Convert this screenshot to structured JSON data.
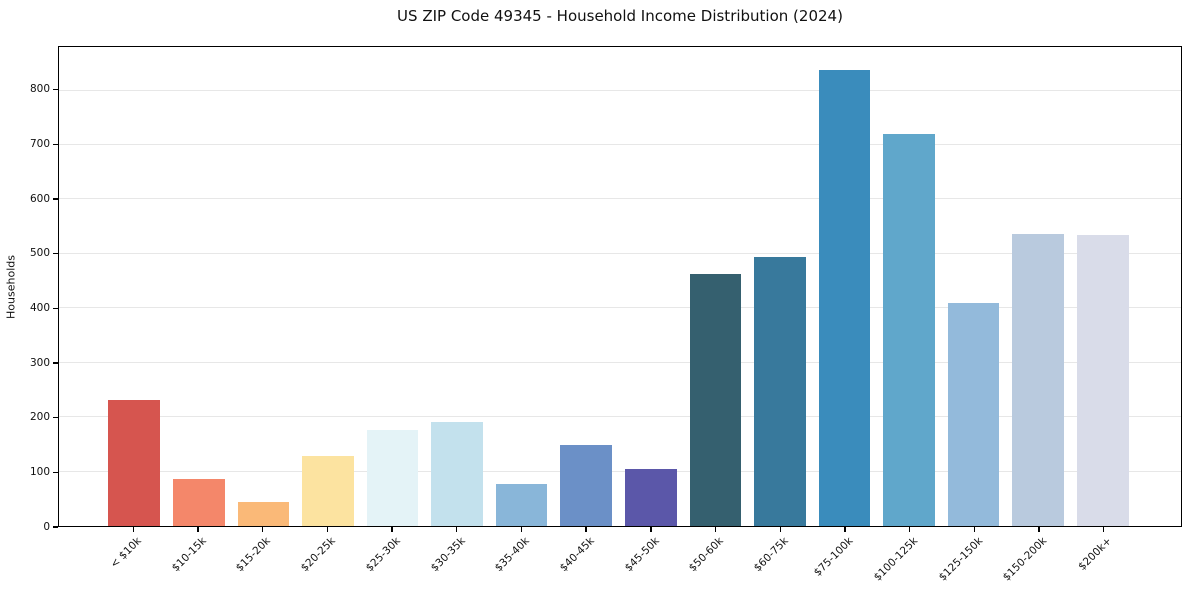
{
  "figure": {
    "background": "#ffffff",
    "text_color": "#111111",
    "spine_color": "#000000"
  },
  "chart_data": {
    "type": "bar",
    "title": "US ZIP Code 49345 - Household Income Distribution (2024)",
    "xlabel": "",
    "ylabel": "Households",
    "categories": [
      "< $10k",
      "$10-15k",
      "$15-20k",
      "$20-25k",
      "$25-30k",
      "$30-35k",
      "$35-40k",
      "$40-45k",
      "$45-50k",
      "$50-60k",
      "$60-75k",
      "$75-100k",
      "$100-125k",
      "$125-150k",
      "$150-200k",
      "$200k+"
    ],
    "values": [
      232,
      87,
      44,
      128,
      176,
      192,
      78,
      148,
      104,
      463,
      494,
      837,
      721,
      410,
      536,
      534
    ],
    "bar_colors": [
      "#d6554f",
      "#f4876a",
      "#fab978",
      "#fce3a0",
      "#e4f3f7",
      "#c3e1ed",
      "#89b6d9",
      "#6b90c7",
      "#5b57a9",
      "#35606f",
      "#38799c",
      "#3a8cbc",
      "#60a7cb",
      "#93badb",
      "#b9cade",
      "#d9dce9"
    ],
    "yticks": [
      0,
      100,
      200,
      300,
      400,
      500,
      600,
      700,
      800
    ],
    "ylim": [
      0,
      880
    ],
    "grid": "horizontal",
    "grid_color": "#e7e7e7",
    "legend": "none",
    "xtick_rotation_deg": 45
  }
}
